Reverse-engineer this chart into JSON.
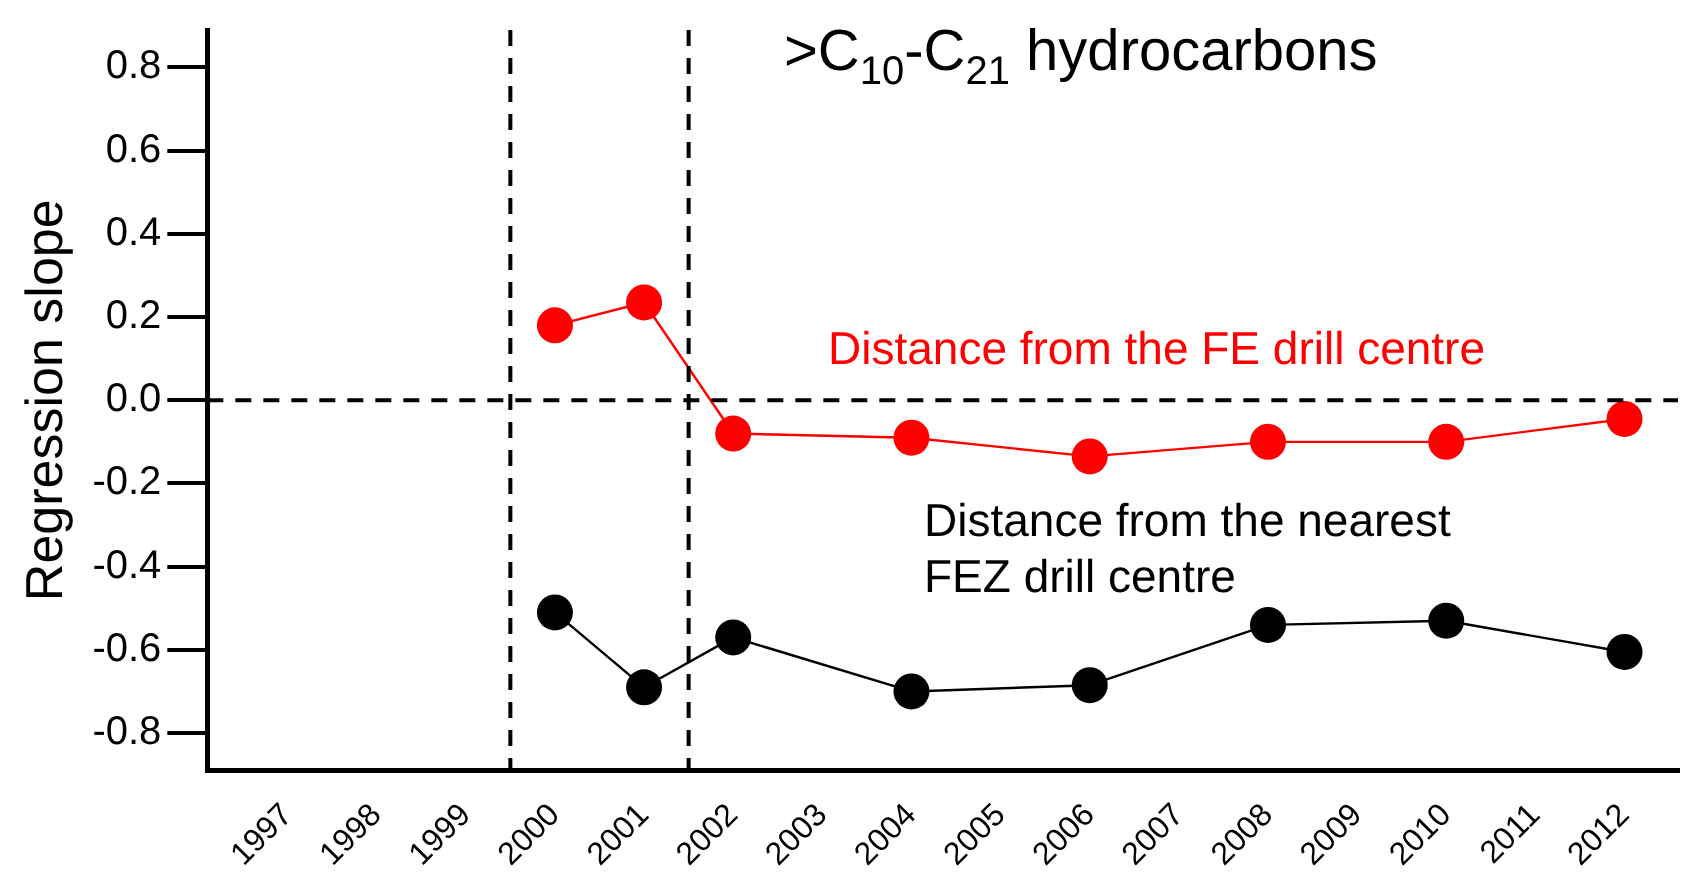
{
  "chart_data": {
    "type": "line",
    "title": ">C$_{10}$-C$_{21}$ hydrocarbons",
    "ylabel": "Regression slope",
    "x": [
      2000,
      2001,
      2002,
      2004,
      2006,
      2008,
      2010,
      2012
    ],
    "series": [
      {
        "name": "Distance from the FE drill centre",
        "color": "#ff0000",
        "values": [
          0.18,
          0.235,
          -0.08,
          -0.09,
          -0.135,
          -0.1,
          -0.1,
          -0.045
        ]
      },
      {
        "name": "Distance from the nearest FEZ drill centre",
        "color": "#000000",
        "values": [
          -0.51,
          -0.69,
          -0.57,
          -0.7,
          -0.685,
          -0.54,
          -0.53,
          -0.605
        ]
      }
    ],
    "xlim": [
      1996.1,
      2012.6
    ],
    "xticks": [
      1997,
      1998,
      1999,
      2000,
      2001,
      2002,
      2003,
      2004,
      2005,
      2006,
      2007,
      2008,
      2009,
      2010,
      2011,
      2012
    ],
    "ylim": [
      -0.89,
      0.89
    ],
    "yticks": [
      -0.8,
      -0.6,
      -0.4,
      -0.2,
      {
        "value": 0,
        "label": "0.0"
      },
      0.2,
      0.4,
      0.6,
      0.8
    ],
    "ref_lines": [
      {
        "axis": "x",
        "value": 1999.5,
        "line_style": "dashed",
        "color": "#000000"
      },
      {
        "axis": "x",
        "value": 2001.5,
        "line_style": "dashed",
        "color": "#000000"
      },
      {
        "axis": "y",
        "value": 0,
        "line_style": "dashed",
        "color": "#000000"
      }
    ],
    "grid": false,
    "legend": false,
    "marker": "circle",
    "line_style": "solid"
  }
}
